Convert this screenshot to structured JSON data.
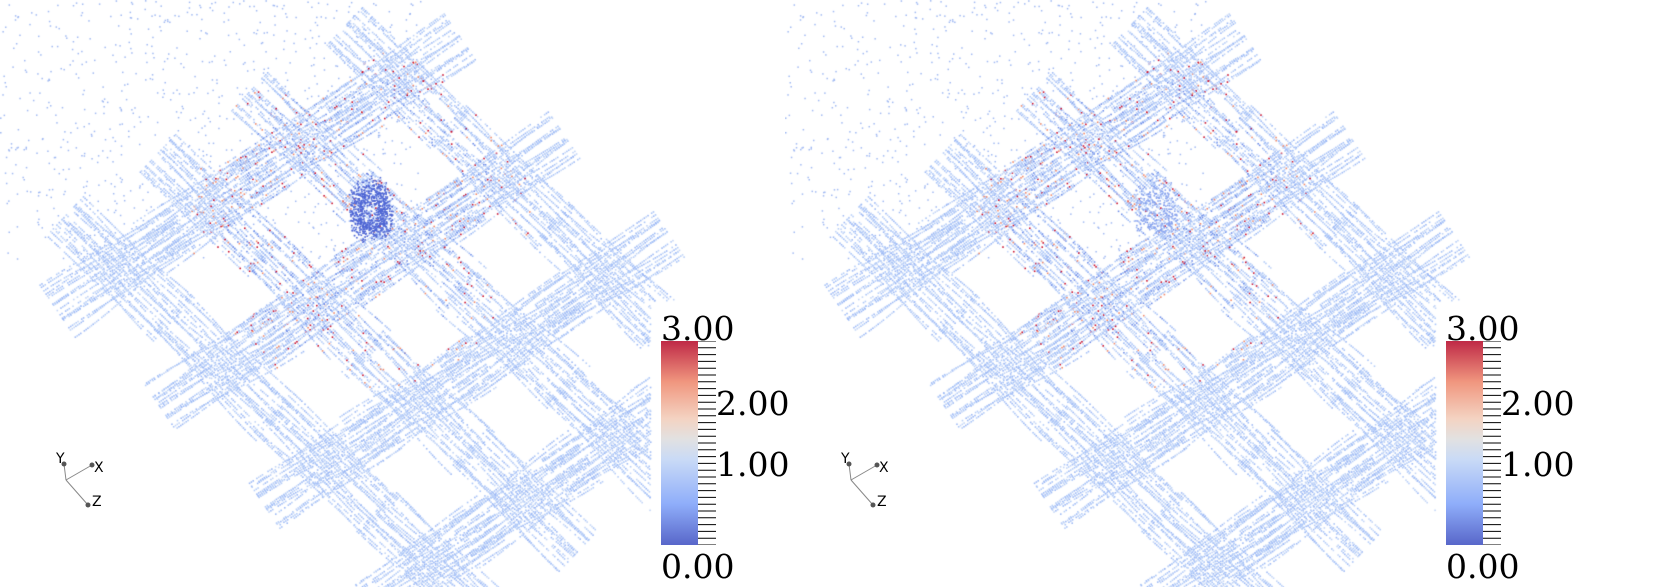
{
  "views": [
    {
      "name": "left-view",
      "colorbar": {
        "range": [
          0,
          3
        ],
        "labels": [
          "3.00",
          "2.00",
          "1.00",
          "0.00"
        ]
      },
      "axes": {
        "x": "X",
        "y": "Y",
        "z": "Z"
      }
    },
    {
      "name": "right-view",
      "colorbar": {
        "range": [
          0,
          3
        ],
        "labels": [
          "3.00",
          "2.00",
          "1.00",
          "0.00"
        ]
      },
      "axes": {
        "x": "X",
        "y": "Y",
        "z": "Z"
      }
    }
  ],
  "colormap": {
    "low": "#3b4cc0",
    "mid": "#dddddd",
    "high": "#b40426",
    "points_base": "#a9c4f7"
  }
}
